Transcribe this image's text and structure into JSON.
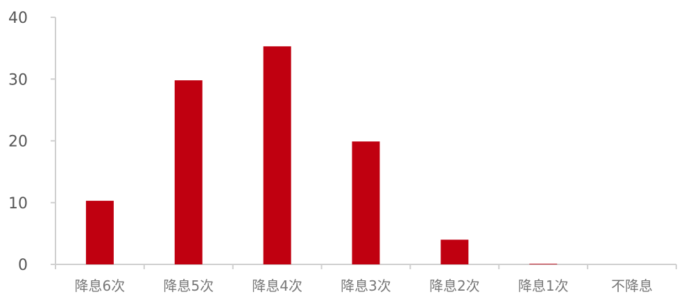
{
  "chart_data": {
    "type": "bar",
    "title": "",
    "xlabel": "",
    "ylabel": "",
    "categories": [
      "降息6次",
      "降息5次",
      "降息4次",
      "降息3次",
      "降息2次",
      "降息1次",
      "不降息"
    ],
    "values": [
      10.3,
      29.8,
      35.3,
      19.9,
      4.0,
      0.1,
      0
    ],
    "ylim": [
      0,
      40
    ],
    "yticks": [
      0,
      10,
      20,
      30,
      40
    ],
    "grid": false,
    "legend": "none",
    "colors": {
      "bar": "#c00010",
      "axis": "#cfcfcf",
      "tick_text": "#555555",
      "category_text": "#777777"
    }
  }
}
